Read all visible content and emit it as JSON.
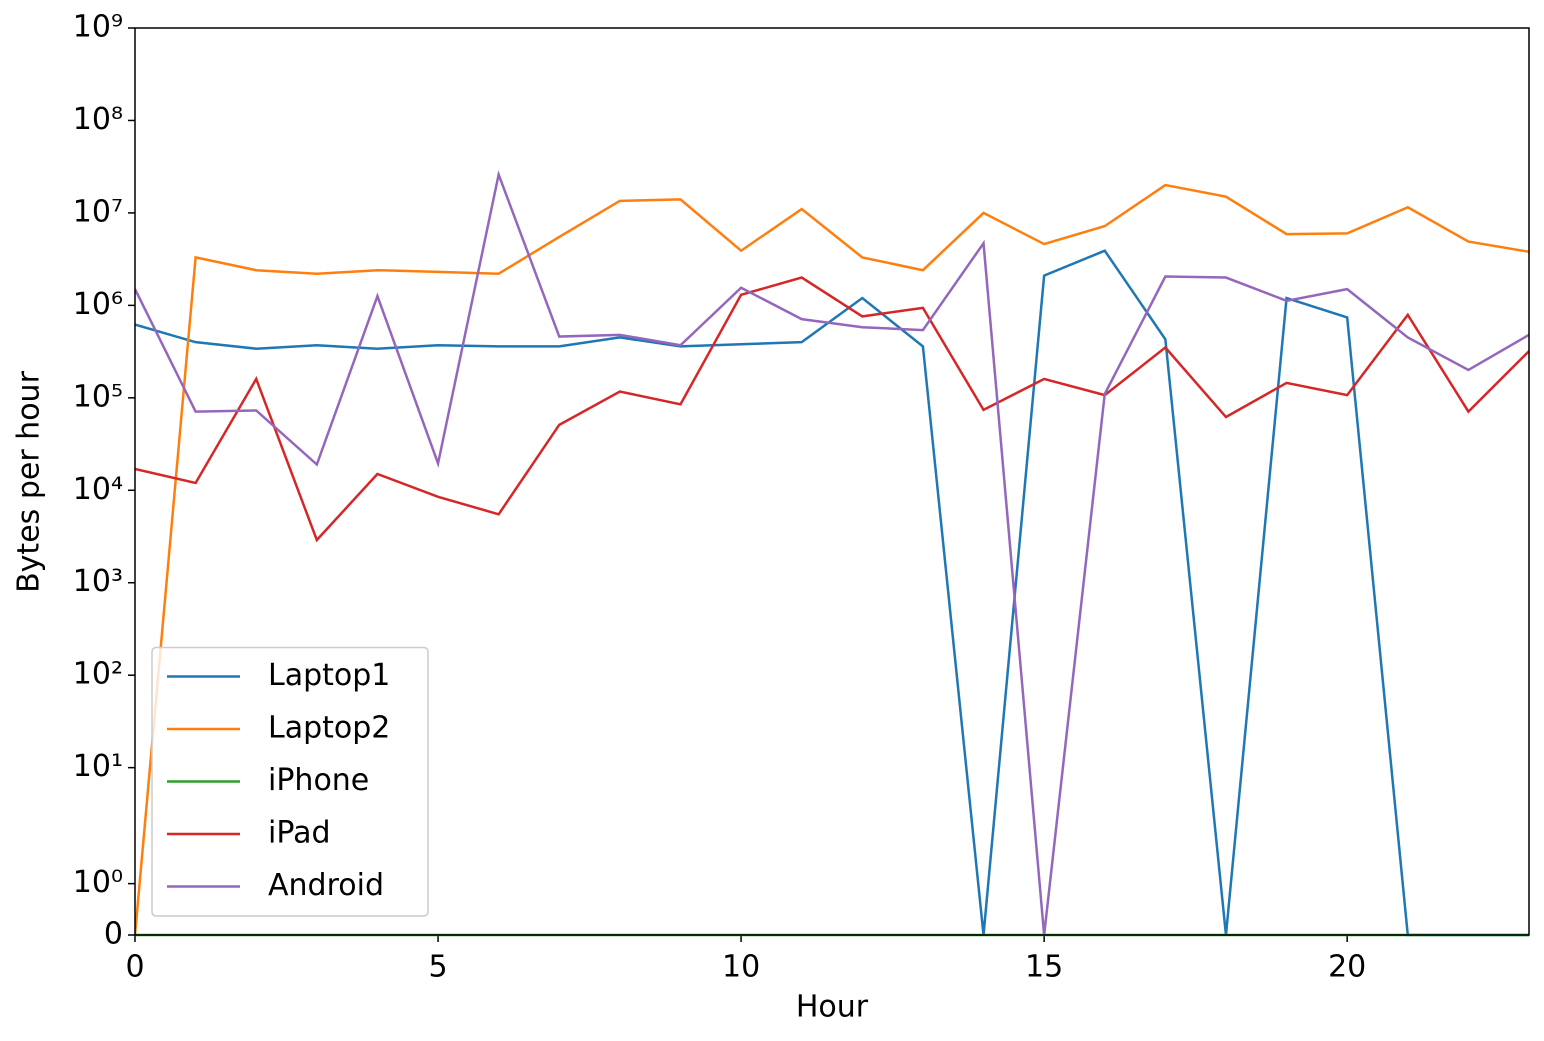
{
  "chart_data": {
    "type": "line",
    "xlabel": "Hour",
    "ylabel": "Bytes per hour",
    "x": [
      0,
      1,
      2,
      3,
      4,
      5,
      6,
      7,
      8,
      9,
      10,
      11,
      12,
      13,
      14,
      15,
      16,
      17,
      18,
      19,
      20,
      21,
      22,
      23
    ],
    "xlim": [
      0,
      23
    ],
    "xticks": [
      0,
      5,
      10,
      15,
      20
    ],
    "yscale": "symlog",
    "linthresh": 2,
    "linscale": 1,
    "ylim": [
      0,
      1000000000
    ],
    "yticks": [
      0,
      {
        "value": 1,
        "label": "10⁰"
      },
      {
        "value": 10,
        "label": "10¹"
      },
      {
        "value": 100,
        "label": "10²"
      },
      {
        "value": 1000,
        "label": "10³"
      },
      {
        "value": 10000,
        "label": "10⁴"
      },
      {
        "value": 100000,
        "label": "10⁵"
      },
      {
        "value": 1000000,
        "label": "10⁶"
      },
      {
        "value": 10000000,
        "label": "10⁷"
      },
      {
        "value": 100000000,
        "label": "10⁸"
      },
      {
        "value": 1000000000,
        "label": "10⁹"
      }
    ],
    "legend": "lower left",
    "series": [
      {
        "name": "Laptop1",
        "color": "#1f77b4",
        "values": [
          620000,
          400000,
          340000,
          370000,
          340000,
          370000,
          360000,
          360000,
          450000,
          360000,
          380000,
          400000,
          1200000,
          360000,
          0,
          2100000,
          3900000,
          430000,
          0,
          1200000,
          740000,
          0,
          0,
          0
        ]
      },
      {
        "name": "Laptop2",
        "color": "#ff7f0e",
        "values": [
          0,
          3300000,
          2400000,
          2200000,
          2400000,
          2300000,
          2200000,
          5500000,
          13500000,
          14000000,
          3900000,
          11000000,
          3300000,
          2400000,
          10000000,
          4600000,
          7200000,
          20000000,
          15000000,
          5900000,
          6000000,
          11500000,
          4900000,
          3800000
        ]
      },
      {
        "name": "iPhone",
        "color": "#2ca02c",
        "values": [
          0,
          0,
          0,
          0,
          0,
          0,
          0,
          0,
          0,
          0,
          0,
          0,
          0,
          0,
          0,
          0,
          0,
          0,
          0,
          0,
          0,
          0,
          0,
          0
        ]
      },
      {
        "name": "iPad",
        "color": "#d62728",
        "values": [
          17000,
          12000,
          160000,
          2900,
          15000,
          8500,
          5500,
          51000,
          117000,
          85000,
          1300000,
          2000000,
          760000,
          940000,
          74000,
          160000,
          107000,
          350000,
          62000,
          145000,
          107000,
          790000,
          71000,
          320000
        ]
      },
      {
        "name": "Android",
        "color": "#9467bd",
        "values": [
          1500000,
          71000,
          73000,
          19000,
          1260000,
          19500,
          26000000,
          460000,
          480000,
          370000,
          1550000,
          710000,
          580000,
          540000,
          4700000,
          0,
          110000,
          2050000,
          2000000,
          1120000,
          1500000,
          450000,
          200000,
          480000
        ]
      }
    ]
  }
}
